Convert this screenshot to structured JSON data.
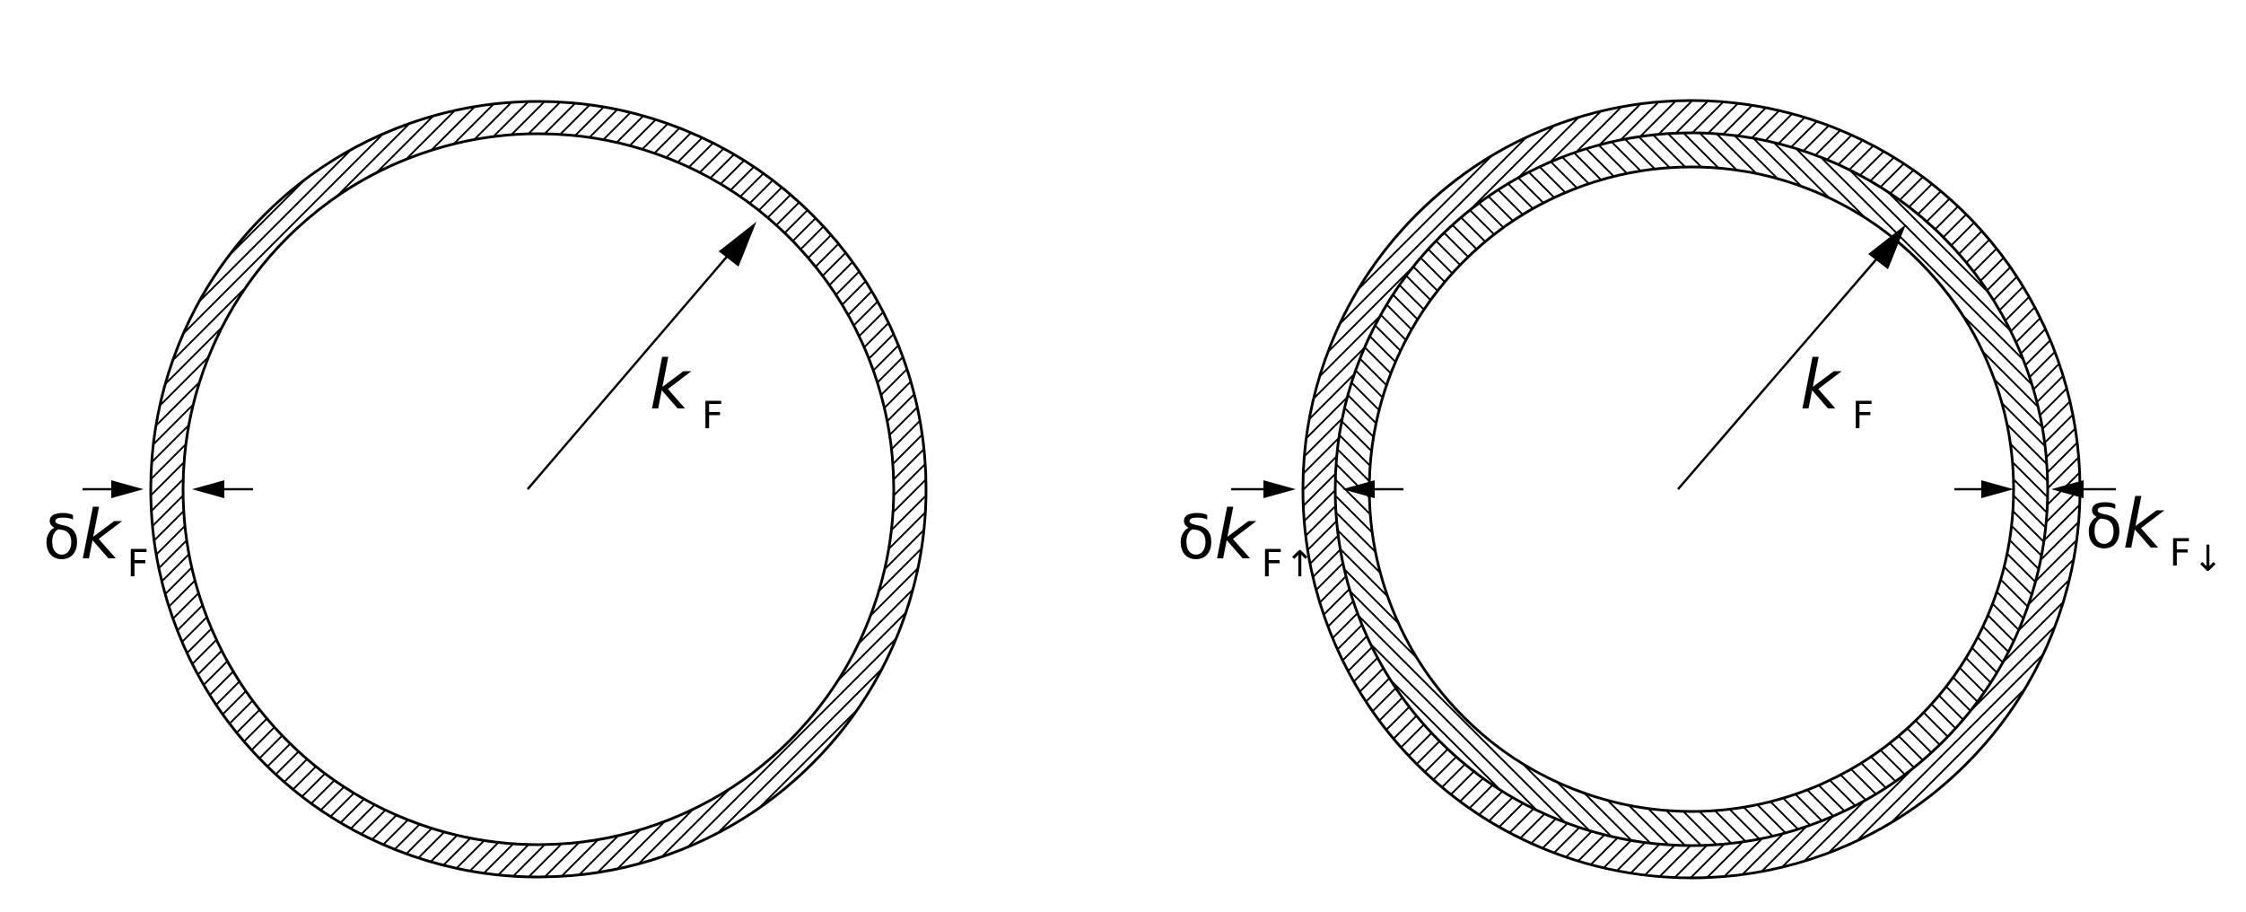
{
  "left_panel": {
    "radius_label": {
      "symbol": "k",
      "subscript": "F"
    },
    "thickness_label": {
      "delta": "δ",
      "symbol": "k",
      "subscript": "F"
    }
  },
  "right_panel": {
    "radius_label": {
      "symbol": "k",
      "subscript": "F"
    },
    "spin_up_label": {
      "delta": "δ",
      "symbol": "k",
      "subscript": "F",
      "spin": "↑"
    },
    "spin_down_label": {
      "delta": "δ",
      "symbol": "k",
      "subscript": "F",
      "spin": "↓"
    }
  },
  "colors": {
    "line": "#000000",
    "background": "#ffffff"
  }
}
